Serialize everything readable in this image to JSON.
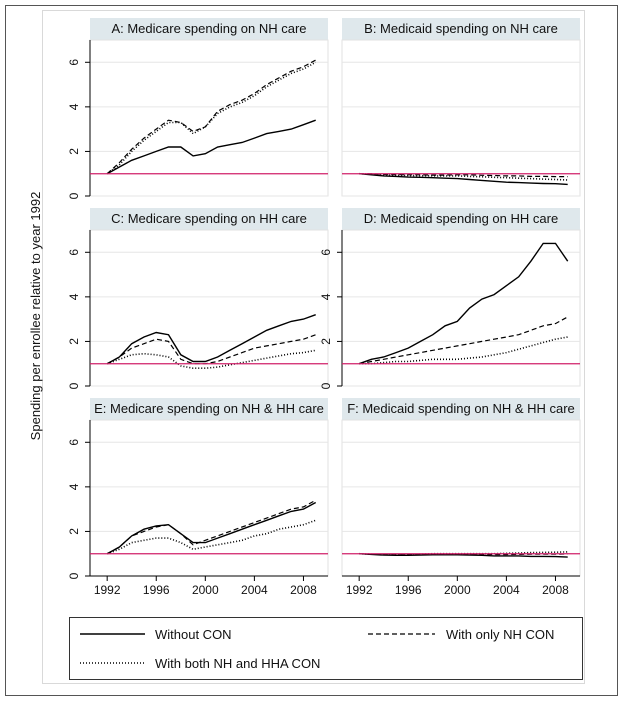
{
  "figure": {
    "ylabel": "Spending per enrollee relative to year 1992",
    "colors": {
      "panel_header": "#dfe8ec",
      "reference_line": "#d0206a",
      "series": "#000000"
    }
  },
  "chart_data": [
    {
      "type": "line",
      "panel": "A",
      "title": "A: Medicare spending on NH care",
      "x": [
        1992,
        1993,
        1994,
        1995,
        1996,
        1997,
        1998,
        1999,
        2000,
        2001,
        2002,
        2003,
        2004,
        2005,
        2006,
        2007,
        2008,
        2009
      ],
      "ylim": [
        0,
        7
      ],
      "yticks": [
        0,
        2,
        4,
        6
      ],
      "xticks": [],
      "reference_y": 1,
      "series": [
        {
          "name": "Without CON",
          "values": [
            1.0,
            1.3,
            1.6,
            1.8,
            2.0,
            2.2,
            2.2,
            1.8,
            1.9,
            2.2,
            2.3,
            2.4,
            2.6,
            2.8,
            2.9,
            3.0,
            3.2,
            3.4
          ]
        },
        {
          "name": "With only NH CON",
          "values": [
            1.0,
            1.5,
            2.1,
            2.6,
            3.0,
            3.4,
            3.3,
            2.9,
            3.1,
            3.8,
            4.1,
            4.3,
            4.6,
            5.0,
            5.3,
            5.6,
            5.8,
            6.1
          ]
        },
        {
          "name": "With both NH and HHA CON",
          "values": [
            1.0,
            1.4,
            2.0,
            2.5,
            2.9,
            3.3,
            3.3,
            2.8,
            3.1,
            3.7,
            4.0,
            4.2,
            4.5,
            4.9,
            5.2,
            5.5,
            5.7,
            6.0
          ]
        }
      ]
    },
    {
      "type": "line",
      "panel": "B",
      "title": "B: Medicaid spending on NH care",
      "x": [
        1992,
        1993,
        1994,
        1995,
        1996,
        1997,
        1998,
        1999,
        2000,
        2001,
        2002,
        2003,
        2004,
        2005,
        2006,
        2007,
        2008,
        2009
      ],
      "ylim": [
        0,
        7
      ],
      "yticks": [],
      "xticks": [],
      "reference_y": 1,
      "series": [
        {
          "name": "Without CON",
          "values": [
            1.0,
            0.95,
            0.9,
            0.88,
            0.85,
            0.84,
            0.82,
            0.8,
            0.78,
            0.74,
            0.7,
            0.66,
            0.62,
            0.6,
            0.58,
            0.56,
            0.55,
            0.52
          ]
        },
        {
          "name": "With only NH CON",
          "values": [
            1.0,
            1.0,
            0.97,
            0.96,
            0.95,
            0.95,
            0.94,
            0.94,
            0.95,
            0.95,
            0.93,
            0.92,
            0.9,
            0.9,
            0.88,
            0.88,
            0.87,
            0.87
          ]
        },
        {
          "name": "With both NH and HHA CON",
          "values": [
            1.0,
            0.98,
            0.95,
            0.93,
            0.92,
            0.91,
            0.9,
            0.9,
            0.9,
            0.88,
            0.86,
            0.84,
            0.82,
            0.8,
            0.78,
            0.76,
            0.74,
            0.72
          ]
        }
      ]
    },
    {
      "type": "line",
      "panel": "C",
      "title": "C: Medicare spending on HH care",
      "x": [
        1992,
        1993,
        1994,
        1995,
        1996,
        1997,
        1998,
        1999,
        2000,
        2001,
        2002,
        2003,
        2004,
        2005,
        2006,
        2007,
        2008,
        2009
      ],
      "ylim": [
        0,
        7
      ],
      "yticks": [
        0,
        2,
        4,
        6
      ],
      "xticks": [],
      "reference_y": 1,
      "series": [
        {
          "name": "Without CON",
          "values": [
            1.0,
            1.3,
            1.9,
            2.2,
            2.4,
            2.3,
            1.4,
            1.1,
            1.1,
            1.3,
            1.6,
            1.9,
            2.2,
            2.5,
            2.7,
            2.9,
            3.0,
            3.2
          ]
        },
        {
          "name": "With only NH CON",
          "values": [
            1.0,
            1.3,
            1.7,
            1.9,
            2.1,
            2.0,
            1.2,
            1.0,
            1.0,
            1.1,
            1.3,
            1.5,
            1.7,
            1.8,
            1.9,
            2.0,
            2.1,
            2.3
          ]
        },
        {
          "name": "With both NH and HHA CON",
          "values": [
            1.0,
            1.2,
            1.4,
            1.45,
            1.4,
            1.3,
            0.9,
            0.8,
            0.8,
            0.85,
            0.95,
            1.05,
            1.15,
            1.25,
            1.35,
            1.45,
            1.5,
            1.6
          ]
        }
      ]
    },
    {
      "type": "line",
      "panel": "D",
      "title": "D: Medicaid spending on HH care",
      "x": [
        1992,
        1993,
        1994,
        1995,
        1996,
        1997,
        1998,
        1999,
        2000,
        2001,
        2002,
        2003,
        2004,
        2005,
        2006,
        2007,
        2008,
        2009
      ],
      "ylim": [
        0,
        7
      ],
      "yticks": [
        0,
        2,
        4,
        6
      ],
      "xticks": [],
      "reference_y": 1,
      "series": [
        {
          "name": "Without CON",
          "values": [
            1.0,
            1.2,
            1.3,
            1.5,
            1.7,
            2.0,
            2.3,
            2.7,
            2.9,
            3.5,
            3.9,
            4.1,
            4.5,
            4.9,
            5.6,
            6.4,
            6.4,
            5.6
          ]
        },
        {
          "name": "With only NH CON",
          "values": [
            1.0,
            1.1,
            1.2,
            1.3,
            1.4,
            1.5,
            1.6,
            1.7,
            1.8,
            1.9,
            2.0,
            2.1,
            2.2,
            2.3,
            2.5,
            2.7,
            2.8,
            3.1
          ]
        },
        {
          "name": "With both NH and HHA CON",
          "values": [
            1.0,
            1.0,
            1.05,
            1.1,
            1.1,
            1.15,
            1.2,
            1.2,
            1.2,
            1.25,
            1.3,
            1.4,
            1.5,
            1.65,
            1.8,
            1.95,
            2.1,
            2.2
          ]
        }
      ]
    },
    {
      "type": "line",
      "panel": "E",
      "title": "E: Medicare spending on NH & HH care",
      "x": [
        1992,
        1993,
        1994,
        1995,
        1996,
        1997,
        1998,
        1999,
        2000,
        2001,
        2002,
        2003,
        2004,
        2005,
        2006,
        2007,
        2008,
        2009
      ],
      "ylim": [
        0,
        7
      ],
      "yticks": [
        0,
        2,
        4,
        6
      ],
      "xticks": [
        1992,
        1996,
        2000,
        2004,
        2008
      ],
      "reference_y": 1,
      "series": [
        {
          "name": "Without CON",
          "values": [
            1.0,
            1.3,
            1.8,
            2.1,
            2.25,
            2.3,
            1.9,
            1.5,
            1.5,
            1.7,
            1.9,
            2.1,
            2.3,
            2.5,
            2.7,
            2.9,
            3.0,
            3.3
          ]
        },
        {
          "name": "With only NH CON",
          "values": [
            1.0,
            1.3,
            1.8,
            2.0,
            2.2,
            2.3,
            1.9,
            1.4,
            1.6,
            1.8,
            2.0,
            2.2,
            2.4,
            2.6,
            2.8,
            3.0,
            3.1,
            3.4
          ]
        },
        {
          "name": "With both NH and HHA CON",
          "values": [
            1.0,
            1.2,
            1.5,
            1.6,
            1.7,
            1.7,
            1.5,
            1.2,
            1.3,
            1.4,
            1.5,
            1.6,
            1.8,
            1.9,
            2.1,
            2.2,
            2.3,
            2.5
          ]
        }
      ]
    },
    {
      "type": "line",
      "panel": "F",
      "title": "F: Medicaid spending on NH & HH care",
      "x": [
        1992,
        1993,
        1994,
        1995,
        1996,
        1997,
        1998,
        1999,
        2000,
        2001,
        2002,
        2003,
        2004,
        2005,
        2006,
        2007,
        2008,
        2009
      ],
      "ylim": [
        0,
        7
      ],
      "yticks": [],
      "xticks": [
        1992,
        1996,
        2000,
        2004,
        2008
      ],
      "reference_y": 1,
      "series": [
        {
          "name": "Without CON",
          "values": [
            1.0,
            0.97,
            0.94,
            0.93,
            0.93,
            0.94,
            0.95,
            0.95,
            0.95,
            0.94,
            0.93,
            0.9,
            0.9,
            0.9,
            0.88,
            0.88,
            0.87,
            0.85
          ]
        },
        {
          "name": "With only NH CON",
          "values": [
            1.0,
            0.98,
            0.96,
            0.95,
            0.96,
            0.97,
            0.98,
            0.98,
            0.98,
            0.97,
            0.97,
            0.96,
            0.96,
            0.97,
            0.98,
            0.98,
            0.98,
            0.99
          ]
        },
        {
          "name": "With both NH and HHA CON",
          "values": [
            1.0,
            0.98,
            0.97,
            0.96,
            0.97,
            0.98,
            1.0,
            1.0,
            1.0,
            1.0,
            1.0,
            1.0,
            1.02,
            1.03,
            1.05,
            1.06,
            1.07,
            1.08
          ]
        }
      ]
    }
  ],
  "legend": {
    "items": [
      {
        "label": "Without CON",
        "style": "solid"
      },
      {
        "label": "With only NH CON",
        "style": "dashed"
      },
      {
        "label": "With both NH and HHA CON",
        "style": "dotted"
      }
    ]
  }
}
